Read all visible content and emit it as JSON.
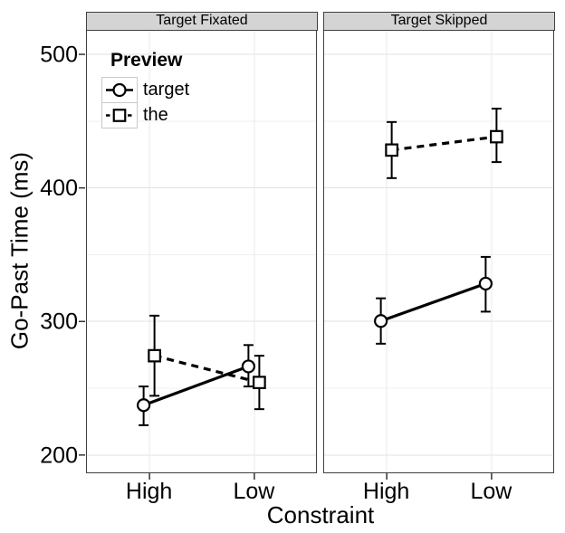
{
  "chart_data": {
    "type": "line",
    "title": "",
    "xlabel": "Constraint",
    "ylabel": "Go-Past Time (ms)",
    "categories": [
      "High",
      "Low"
    ],
    "ylim": [
      186,
      518
    ],
    "y_major_ticks": [
      200,
      300,
      400,
      500
    ],
    "y_minor_ticks": [
      250,
      350,
      450
    ],
    "grid": true,
    "legend": {
      "title": "Preview",
      "position": "top-left-inside-first-panel",
      "entries": [
        {
          "label": "target",
          "marker": "circle",
          "line": "solid"
        },
        {
          "label": "the",
          "marker": "square",
          "line": "dashed"
        }
      ]
    },
    "facets": [
      {
        "label": "Target Fixated",
        "series": [
          {
            "name": "target",
            "marker": "circle",
            "line": "solid",
            "values": [
              237,
              266
            ],
            "ci_lower": [
              222,
              251
            ],
            "ci_upper": [
              251,
              282
            ]
          },
          {
            "name": "the",
            "marker": "square",
            "line": "dashed",
            "values": [
              274,
              254
            ],
            "ci_lower": [
              244,
              234
            ],
            "ci_upper": [
              304,
              274
            ]
          }
        ]
      },
      {
        "label": "Target Skipped",
        "series": [
          {
            "name": "target",
            "marker": "circle",
            "line": "solid",
            "values": [
              300,
              328
            ],
            "ci_lower": [
              283,
              307
            ],
            "ci_upper": [
              317,
              348
            ]
          },
          {
            "name": "the",
            "marker": "square",
            "line": "dashed",
            "values": [
              428,
              438
            ],
            "ci_lower": [
              407,
              419
            ],
            "ci_upper": [
              449,
              459
            ]
          }
        ]
      }
    ],
    "colors": {
      "marker_stroke": "#000000",
      "marker_fill": "#ffffff",
      "strip_bg": "#d4d4d4",
      "panel_border": "#404040",
      "grid_major": "#e2e2e2",
      "grid_minor": "#f0f0f0",
      "grid_vertical": "#e8e8e8",
      "tick": "#333333",
      "text": "#000000"
    }
  }
}
